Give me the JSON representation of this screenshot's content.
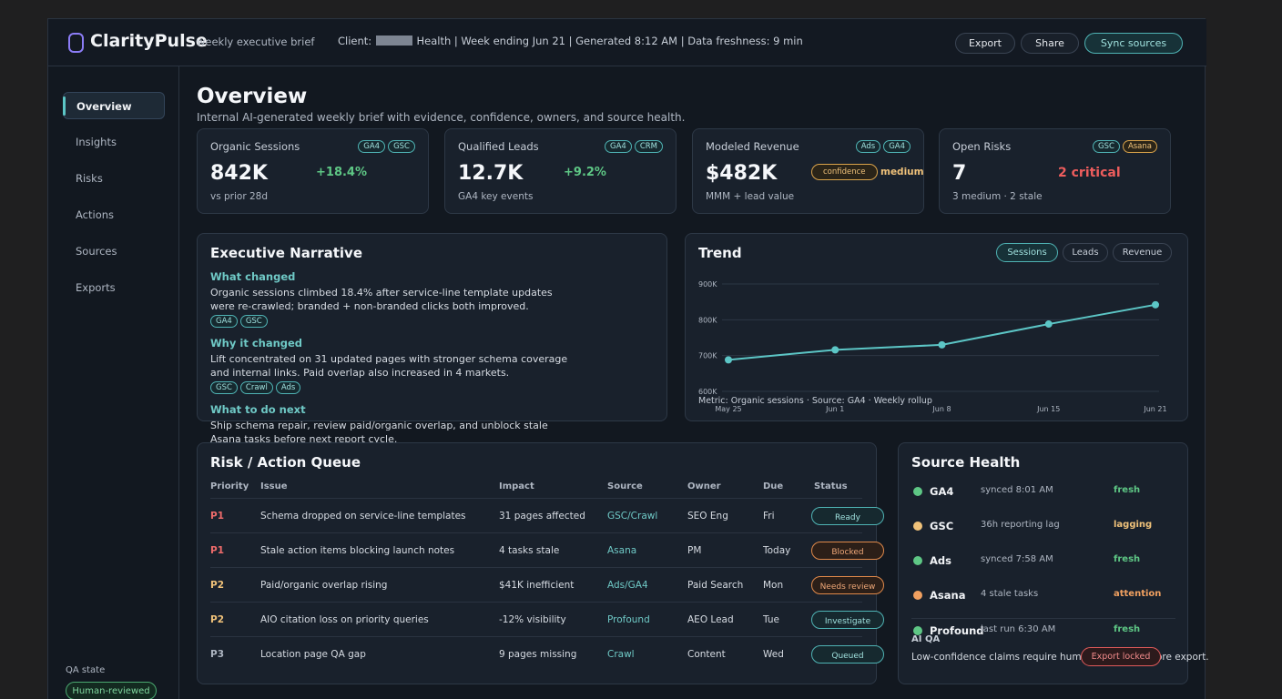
{
  "header": {
    "brand": "ClarityPulse",
    "brand_sub": "weekly executive brief",
    "client_label": "Client:",
    "client_suffix": "Health",
    "meta_rest": "|  Week ending Jun 21  |  Generated 8:12 AM  |  Data freshness: 9 min",
    "export_label": "Export",
    "share_label": "Share",
    "sync_label": "Sync sources"
  },
  "sidebar": {
    "items": [
      {
        "label": "Overview"
      },
      {
        "label": "Insights"
      },
      {
        "label": "Risks"
      },
      {
        "label": "Actions"
      },
      {
        "label": "Sources"
      },
      {
        "label": "Exports"
      }
    ],
    "qa_label": "QA state",
    "qa_badge": "Human-reviewed"
  },
  "page": {
    "title": "Overview",
    "subtitle": "Internal AI-generated weekly brief with evidence, confidence, owners, and source health."
  },
  "kpis": [
    {
      "label": "Organic Sessions",
      "tags": [
        "GA4",
        "GSC"
      ],
      "value": "842K",
      "delta": "+18.4%",
      "foot": "vs prior 28d"
    },
    {
      "label": "Qualified Leads",
      "tags": [
        "GA4",
        "CRM"
      ],
      "value": "12.7K",
      "delta": "+9.2%",
      "foot": "GA4 key events"
    },
    {
      "label": "Modeled Revenue",
      "tags": [
        "Ads",
        "GA4"
      ],
      "value": "$482K",
      "confidence_label": "confidence",
      "confidence_value": "medium",
      "foot": "MMM + lead value"
    },
    {
      "label": "Open Risks",
      "tags": [
        "GSC",
        "Asana"
      ],
      "value": "7",
      "delta": "2 critical",
      "foot": "3 medium · 2 stale"
    }
  ],
  "narrative": {
    "title": "Executive Narrative",
    "sections": [
      {
        "heading": "What changed",
        "body": "Organic sessions climbed 18.4% after service-line template updates were re-crawled; branded + non-branded clicks both improved.",
        "tags": [
          "GA4",
          "GSC"
        ]
      },
      {
        "heading": "Why it changed",
        "body": "Lift concentrated on 31 updated pages with stronger schema coverage and internal links. Paid overlap also increased in 4 markets.",
        "tags": [
          "GSC",
          "Crawl",
          "Ads"
        ]
      },
      {
        "heading": "What to do next",
        "body": "Ship schema repair, review paid/organic overlap, and unblock stale Asana tasks before next report cycle.",
        "tags": []
      }
    ]
  },
  "trend": {
    "title": "Trend",
    "toggles": [
      "Sessions",
      "Leads",
      "Revenue"
    ],
    "active_toggle": "Sessions",
    "caption": "Metric: Organic sessions · Source: GA4 · Weekly rollup"
  },
  "chart_data": {
    "type": "line",
    "categories": [
      "May 25",
      "Jun 1",
      "Jun 8",
      "Jun 15",
      "Jun 21"
    ],
    "series": [
      {
        "values": [
          688000,
          716000,
          730000,
          788000,
          842000
        ]
      }
    ],
    "ylim": [
      600000,
      900000
    ],
    "y_ticks": [
      {
        "v": 900000,
        "label": "900K"
      },
      {
        "v": 800000,
        "label": "800K"
      },
      {
        "v": 700000,
        "label": "700K"
      },
      {
        "v": 600000,
        "label": "600K"
      }
    ],
    "grid": true,
    "color": "#5cc6c6"
  },
  "queue": {
    "title": "Risk / Action Queue",
    "columns": [
      "Priority",
      "Issue",
      "Impact",
      "Source",
      "Owner",
      "Due",
      "Status"
    ],
    "rows": [
      {
        "priority": "P1",
        "issue": "Schema dropped on service-line templates",
        "impact": "31 pages affected",
        "source": "GSC/Crawl",
        "owner": "SEO Eng",
        "due": "Fri",
        "status": "Ready"
      },
      {
        "priority": "P1",
        "issue": "Stale action items blocking launch notes",
        "impact": "4 tasks stale",
        "source": "Asana",
        "owner": "PM",
        "due": "Today",
        "status": "Blocked"
      },
      {
        "priority": "P2",
        "issue": "Paid/organic overlap rising",
        "impact": "$41K inefficient",
        "source": "Ads/GA4",
        "owner": "Paid Search",
        "due": "Mon",
        "status": "Needs review"
      },
      {
        "priority": "P2",
        "issue": "AIO citation loss on priority queries",
        "impact": "-12% visibility",
        "source": "Profound",
        "owner": "AEO Lead",
        "due": "Tue",
        "status": "Investigate"
      },
      {
        "priority": "P3",
        "issue": "Location page QA gap",
        "impact": "9 pages missing",
        "source": "Crawl",
        "owner": "Content",
        "due": "Wed",
        "status": "Queued"
      }
    ],
    "colors": {
      "teal": "#4fb3b4",
      "orange": "#e0894a"
    }
  },
  "source_health": {
    "title": "Source Health",
    "rows": [
      {
        "name": "GA4",
        "detail": "synced 8:01 AM",
        "state": "fresh",
        "color": "#5ec785"
      },
      {
        "name": "GSC",
        "detail": "36h reporting lag",
        "state": "lagging",
        "color": "#f0c27a"
      },
      {
        "name": "Ads",
        "detail": "synced 7:58 AM",
        "state": "fresh",
        "color": "#5ec785"
      },
      {
        "name": "Asana",
        "detail": "4 stale tasks",
        "state": "attention",
        "color": "#f0a060"
      },
      {
        "name": "Profound",
        "detail": "last run 6:30 AM",
        "state": "fresh",
        "color": "#5ec785"
      }
    ],
    "ai_qa_heading": "AI QA",
    "ai_qa_text": "Low-confidence claims require human approval before export.",
    "export_locked_label": "Export locked"
  }
}
